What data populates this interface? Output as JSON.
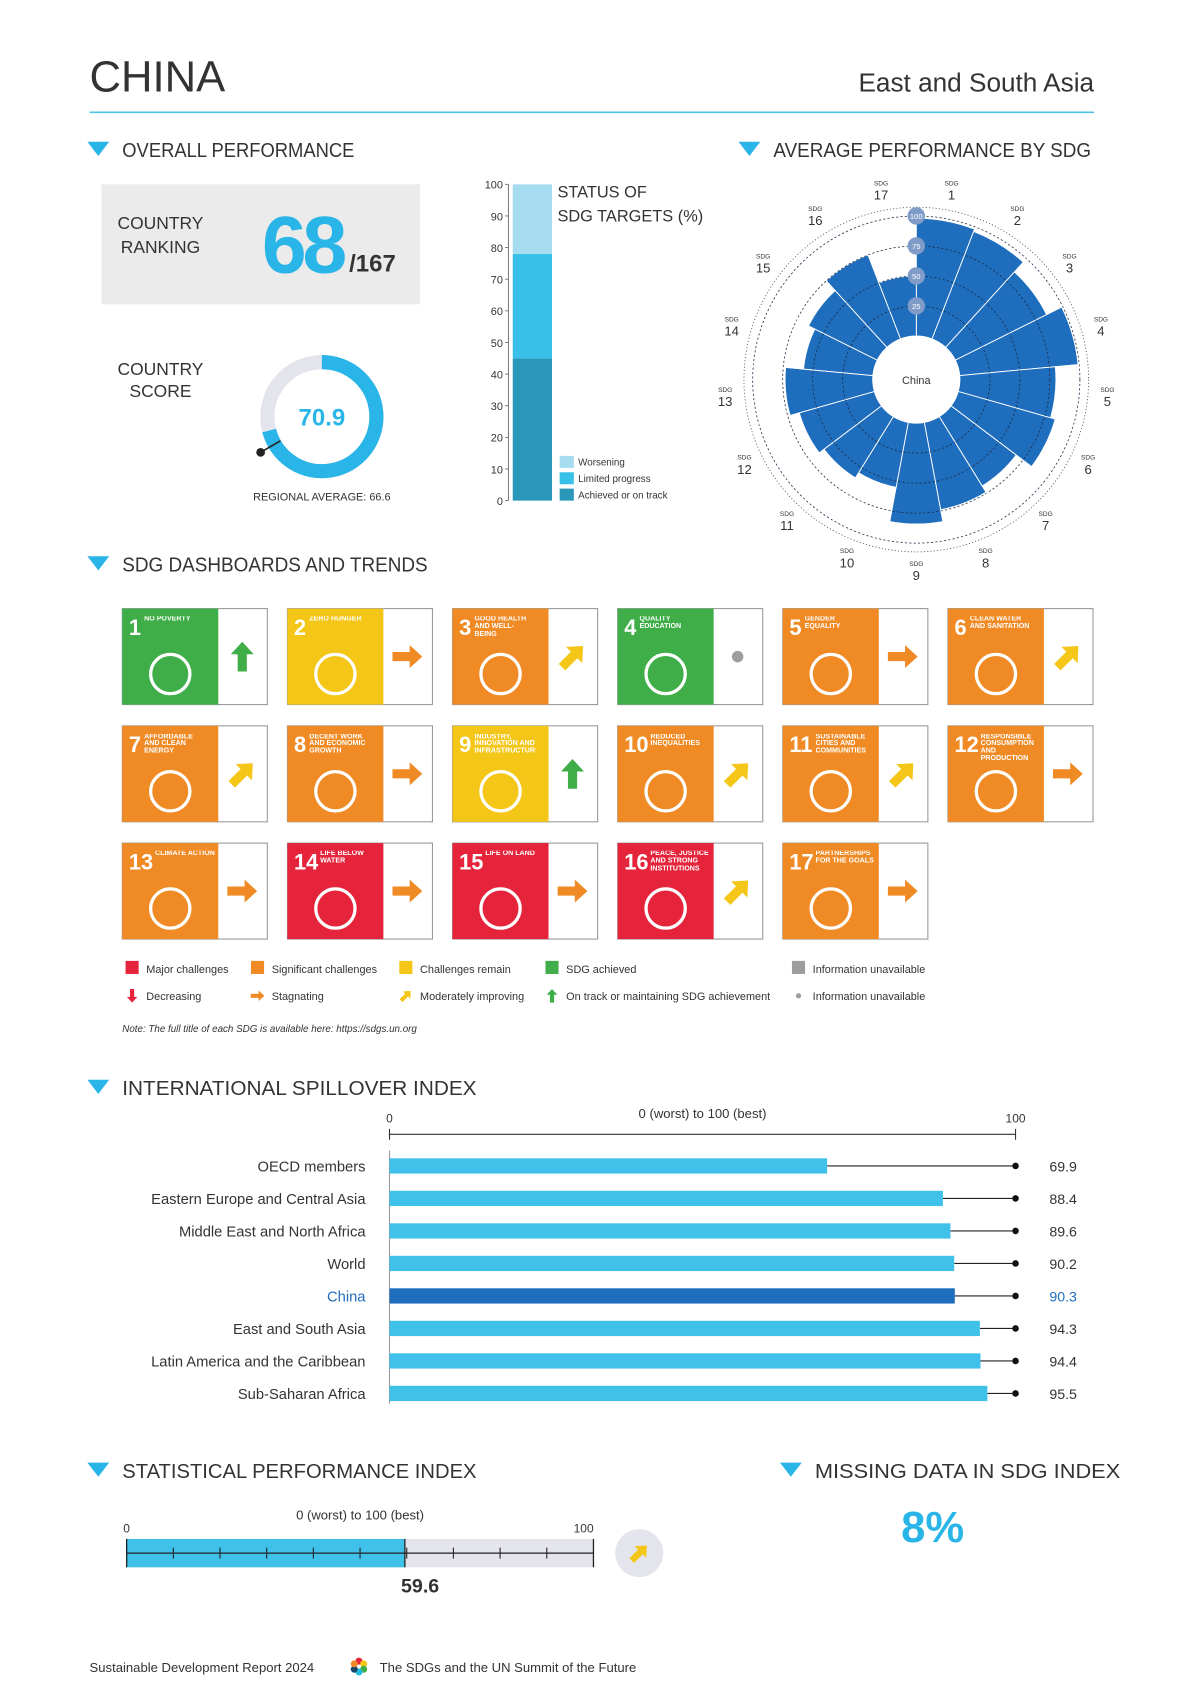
{
  "header": {
    "country": "CHINA",
    "region": "East and South Asia"
  },
  "overall": {
    "title": "OVERALL PERFORMANCE",
    "ranking_label": [
      "COUNTRY",
      "RANKING"
    ],
    "rank": 68,
    "rank_total": "/167",
    "score_label": [
      "COUNTRY",
      "SCORE"
    ],
    "score": 70.9,
    "score_lim": [
      0,
      100
    ],
    "regional_average_label": "REGIONAL AVERAGE: ",
    "regional_average": 66.6
  },
  "chart_data": [
    {
      "type": "stacked_bar",
      "title": [
        "STATUS OF",
        "SDG TARGETS (%)"
      ],
      "series": [
        {
          "name": "Achieved or on track",
          "color": "#2a96b8",
          "values": [
            45
          ]
        },
        {
          "name": "Limited progress",
          "color": "#38c0e8",
          "values": [
            33
          ]
        },
        {
          "name": "Worsening",
          "color": "#a6dcf0",
          "values": [
            22
          ]
        }
      ],
      "ylim": [
        0,
        100
      ],
      "yticks": [
        0,
        10,
        20,
        30,
        40,
        50,
        60,
        70,
        80,
        90,
        100
      ]
    },
    {
      "type": "polar_bar",
      "title": "AVERAGE PERFORMANCE BY SDG",
      "center_label": "China",
      "category_prefix": "SDG",
      "categories": [
        "1",
        "2",
        "3",
        "4",
        "5",
        "6",
        "7",
        "8",
        "9",
        "10",
        "11",
        "12",
        "13",
        "14",
        "15",
        "16",
        "17"
      ],
      "values": [
        98,
        96,
        85,
        99,
        80,
        84,
        68,
        74,
        84,
        55,
        60,
        65,
        73,
        58,
        64,
        75,
        50
      ],
      "color": "#1f6dbd",
      "rlim": [
        0,
        100
      ],
      "rticks": [
        25,
        50,
        75,
        100
      ]
    },
    {
      "type": "hbar",
      "title": "INTERNATIONAL SPILLOVER INDEX",
      "axis_title": "0 (worst) to 100 (best)",
      "categories": [
        "OECD members",
        "Eastern Europe and Central Asia",
        "Middle East and North Africa",
        "World",
        "China",
        "East and South Asia",
        "Latin America and the Caribbean",
        "Sub-Saharan Africa"
      ],
      "values": [
        69.9,
        88.4,
        89.6,
        90.2,
        90.3,
        94.3,
        94.4,
        95.5
      ],
      "colors": [
        "#3fc1ea",
        "#3fc1ea",
        "#3fc1ea",
        "#3fc1ea",
        "#1f6dbd",
        "#3fc1ea",
        "#3fc1ea",
        "#3fc1ea"
      ],
      "label_colors": [
        "#333333",
        "#333333",
        "#333333",
        "#333333",
        "#1f6dbd",
        "#333333",
        "#333333",
        "#333333"
      ],
      "xlim": [
        0,
        100
      ],
      "xticks": [
        0,
        100
      ]
    },
    {
      "type": "progress_bar",
      "title": "STATISTICAL PERFORMANCE INDEX",
      "axis_title": "0 (worst) to 100 (best)",
      "value": 59.6,
      "color": "#3fc1ea",
      "xlim": [
        0,
        100
      ],
      "xticks": [
        0,
        100
      ],
      "minor_ticks": [
        10,
        20,
        30,
        40,
        50,
        60,
        70,
        80,
        90
      ],
      "trend": "diag"
    }
  ],
  "dashboard": {
    "title": "SDG DASHBOARDS AND TRENDS",
    "goals": [
      {
        "number": "1",
        "title": "NO POVERTY",
        "color": "#3fae49",
        "trend": "up"
      },
      {
        "number": "2",
        "title": "ZERO HUNGER",
        "color": "#f3c618",
        "trend": "right"
      },
      {
        "number": "3",
        "title": "GOOD HEALTH AND WELL-BEING",
        "color": "#f08a24",
        "trend": "diag"
      },
      {
        "number": "4",
        "title": "QUALITY EDUCATION",
        "color": "#3fae49",
        "trend": "dot"
      },
      {
        "number": "5",
        "title": "GENDER EQUALITY",
        "color": "#f08a24",
        "trend": "right"
      },
      {
        "number": "6",
        "title": "CLEAN WATER AND SANITATION",
        "color": "#f08a24",
        "trend": "diag"
      },
      {
        "number": "7",
        "title": "AFFORDABLE AND CLEAN ENERGY",
        "color": "#f08a24",
        "trend": "diag"
      },
      {
        "number": "8",
        "title": "DECENT WORK AND ECONOMIC GROWTH",
        "color": "#f08a24",
        "trend": "right"
      },
      {
        "number": "9",
        "title": "INDUSTRY, INNOVATION AND INFRASTRUCTURE",
        "color": "#f3c618",
        "trend": "up"
      },
      {
        "number": "10",
        "title": "REDUCED INEQUALITIES",
        "color": "#f08a24",
        "trend": "diag"
      },
      {
        "number": "11",
        "title": "SUSTAINABLE CITIES AND COMMUNITIES",
        "color": "#f08a24",
        "trend": "diag"
      },
      {
        "number": "12",
        "title": "RESPONSIBLE CONSUMPTION AND PRODUCTION",
        "color": "#f08a24",
        "trend": "right"
      },
      {
        "number": "13",
        "title": "CLIMATE ACTION",
        "color": "#f08a24",
        "trend": "right"
      },
      {
        "number": "14",
        "title": "LIFE BELOW WATER",
        "color": "#e5243b",
        "trend": "right"
      },
      {
        "number": "15",
        "title": "LIFE ON LAND",
        "color": "#e5243b",
        "trend": "right"
      },
      {
        "number": "16",
        "title": "PEACE, JUSTICE AND STRONG INSTITUTIONS",
        "color": "#e5243b",
        "trend": "diag"
      },
      {
        "number": "17",
        "title": "PARTNERSHIPS FOR THE GOALS",
        "color": "#f08a24",
        "trend": "right"
      }
    ],
    "ratings": [
      {
        "label": "Major challenges",
        "color": "#e5243b"
      },
      {
        "label": "Significant challenges",
        "color": "#f08a24"
      },
      {
        "label": "Challenges remain",
        "color": "#f3c618"
      },
      {
        "label": "SDG achieved",
        "color": "#3fae49"
      },
      {
        "label": "Information unavailable",
        "color": "#9d9d9d"
      }
    ],
    "trends": [
      {
        "label": "Decreasing",
        "symbol": "down",
        "color": "#e5243b"
      },
      {
        "label": "Stagnating",
        "symbol": "right",
        "color": "#f08a24"
      },
      {
        "label": "Moderately improving",
        "symbol": "diag",
        "color": "#f3c618"
      },
      {
        "label": "On track or maintaining SDG achievement",
        "symbol": "up",
        "color": "#3fae49"
      },
      {
        "label": "Information unavailable",
        "symbol": "dot",
        "color": "#9d9d9d"
      }
    ],
    "note": "Note: The full title of each SDG is available here: https://sdgs.un.org"
  },
  "missing_data": {
    "title": "MISSING DATA IN SDG INDEX",
    "value": "8%"
  },
  "footer": {
    "report": "Sustainable Development Report 2024",
    "subtitle": "The SDGs and the UN Summit of the Future"
  }
}
